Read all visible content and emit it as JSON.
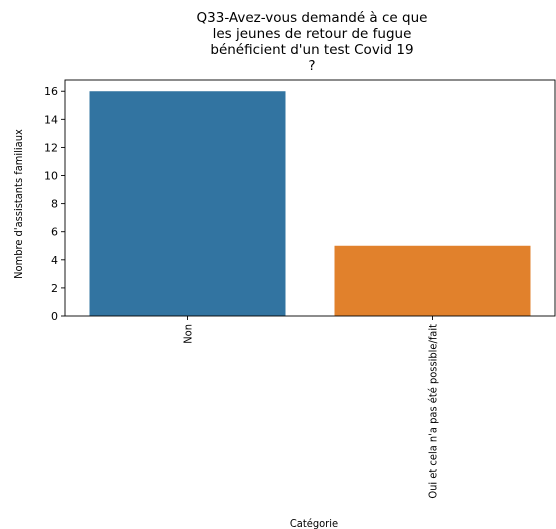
{
  "chart_data": {
    "type": "bar",
    "title_lines": [
      "Q33-Avez-vous demandé à ce que",
      "les jeunes de retour de fugue",
      "bénéficient d'un test Covid 19",
      "?"
    ],
    "categories": [
      "Non",
      "Oui et cela n'a pas été possible/fait"
    ],
    "values": [
      16,
      5
    ],
    "colors": [
      "#3274a1",
      "#e1812c"
    ],
    "xlabel": "Catégorie",
    "ylabel": "Nombre d'assistants familiaux",
    "ylim": [
      0,
      16.8
    ],
    "yticks": [
      0,
      2,
      4,
      6,
      8,
      10,
      12,
      14,
      16
    ],
    "grid": false
  }
}
